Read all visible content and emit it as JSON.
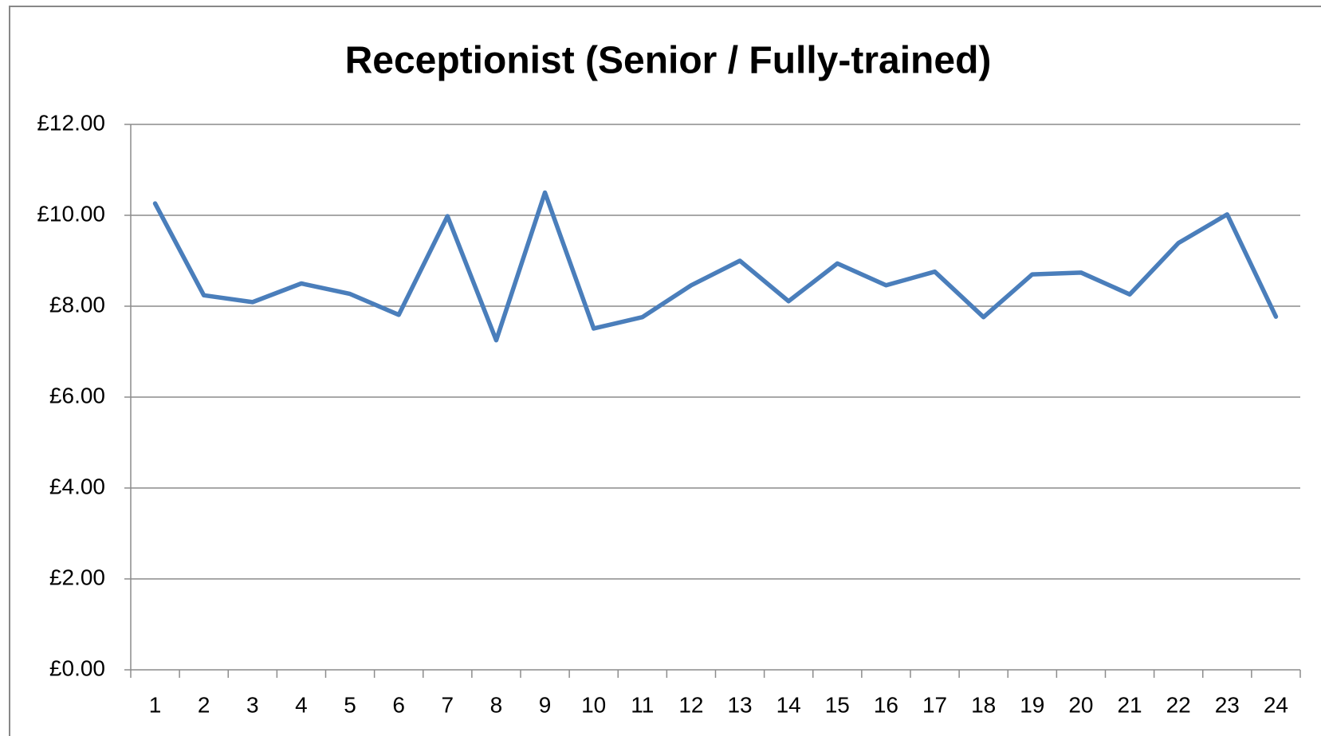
{
  "chart_data": {
    "type": "line",
    "title": "Receptionist (Senior / Fully-trained)",
    "categories": [
      "1",
      "2",
      "3",
      "4",
      "5",
      "6",
      "7",
      "8",
      "9",
      "10",
      "11",
      "12",
      "13",
      "14",
      "15",
      "16",
      "17",
      "18",
      "19",
      "20",
      "21",
      "22",
      "23",
      "24"
    ],
    "series": [
      {
        "color": "#4a7ebb",
        "values": [
          10.26,
          8.24,
          8.09,
          8.5,
          8.27,
          7.81,
          9.98,
          7.25,
          10.5,
          7.51,
          7.76,
          8.46,
          9.0,
          8.11,
          8.94,
          8.46,
          8.76,
          7.76,
          8.7,
          8.74,
          8.26,
          9.39,
          10.02,
          7.77
        ]
      }
    ],
    "ylim": [
      0,
      12
    ],
    "yticks": [
      {
        "value": 0,
        "label": "£0.00"
      },
      {
        "value": 2,
        "label": "£2.00"
      },
      {
        "value": 4,
        "label": "£4.00"
      },
      {
        "value": 6,
        "label": "£6.00"
      },
      {
        "value": 8,
        "label": "£8.00"
      },
      {
        "value": 10,
        "label": "£10.00"
      },
      {
        "value": 12,
        "label": "£12.00"
      }
    ],
    "grid": true
  }
}
